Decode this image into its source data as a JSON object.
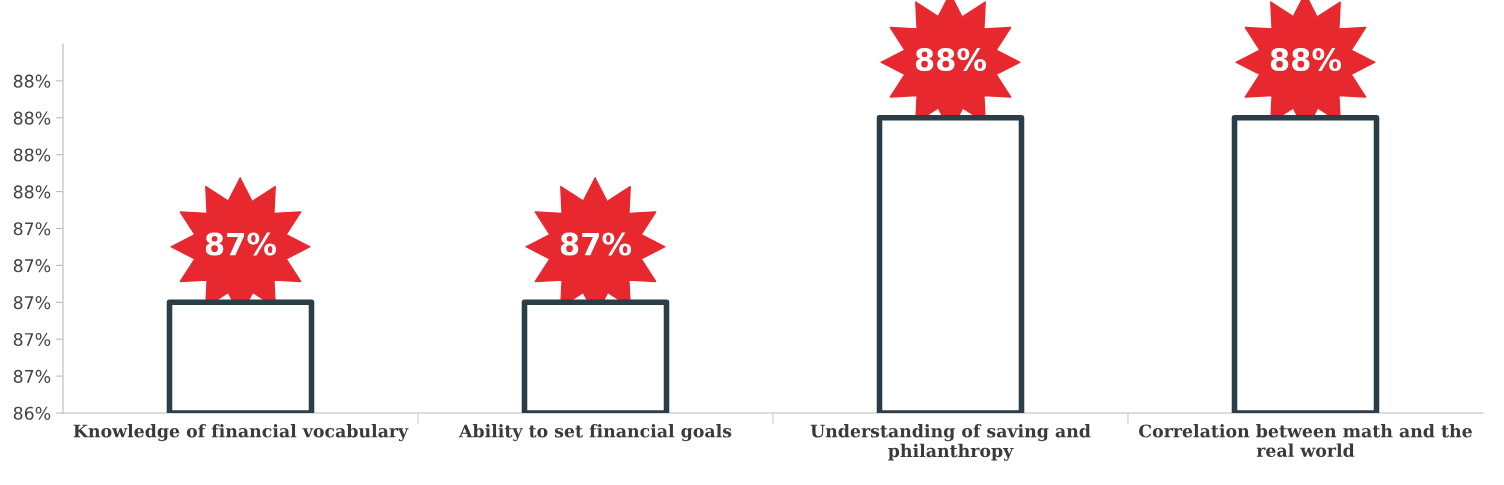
{
  "chart_data": {
    "type": "bar",
    "categories": [
      "Knowledge of financial vocabulary",
      "Ability to set financial goals",
      "Understanding of saving and philanthropy",
      "Correlation between math and the real world"
    ],
    "values": [
      87.0,
      87.0,
      88.0,
      88.0
    ],
    "color": "#2b3d46",
    "value_labels": [
      "87%",
      "87%",
      "88%",
      "88%"
    ],
    "ylim": [
      86.4,
      88.4
    ],
    "yticks": [
      {
        "value": 86.4,
        "label": "86%"
      },
      {
        "value": 86.6,
        "label": "87%"
      },
      {
        "value": 86.8,
        "label": "87%"
      },
      {
        "value": 87.0,
        "label": "87%"
      },
      {
        "value": 87.2,
        "label": "87%"
      },
      {
        "value": 87.4,
        "label": "87%"
      },
      {
        "value": 87.6,
        "label": "88%"
      },
      {
        "value": 87.8,
        "label": "88%"
      },
      {
        "value": 88.0,
        "label": "88%"
      },
      {
        "value": 88.2,
        "label": "88%"
      }
    ],
    "grid": false,
    "legend": false
  }
}
